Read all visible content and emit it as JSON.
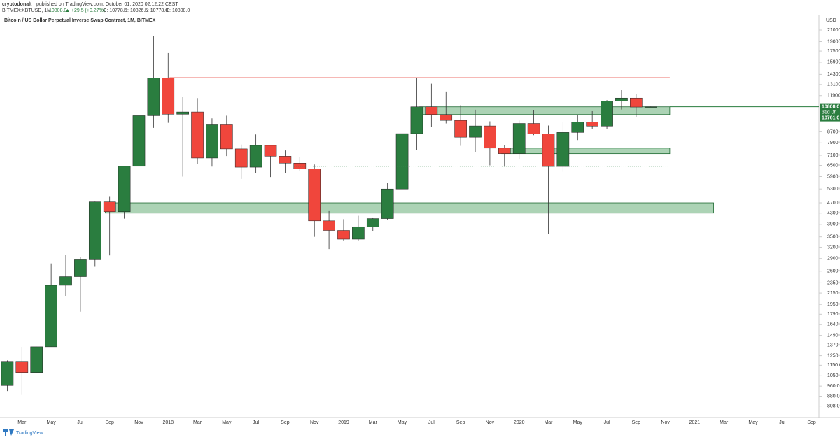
{
  "header": {
    "author": "cryptodonalt",
    "published": "published on TradingView.com, October 01, 2020 02:12:22 CEST",
    "symbol": "BITMEX:XBTUSD, 1M",
    "price": "10808.0",
    "change": "▲ +29.5 (+0.27%)",
    "ohlc": [
      "O: 10778.5",
      "H: 10826.5",
      "L: 10778.0",
      "C: 10808.0"
    ]
  },
  "footer": {
    "brand": "TradingView"
  },
  "chart_data": {
    "type": "candlestick",
    "title": "Bitcoin / US Dollar Perpetual Inverse Swap Contract, 1M, BITMEX",
    "currency": "USD",
    "categories": [
      null,
      "Mar",
      null,
      "May",
      null,
      "Jul",
      null,
      "Sep",
      null,
      "Nov",
      null,
      "2018",
      null,
      "Mar",
      null,
      "May",
      null,
      "Jul",
      null,
      "Sep",
      null,
      "Nov",
      null,
      "2019",
      null,
      "Mar",
      null,
      "May",
      null,
      "Jul",
      null,
      "Sep",
      null,
      "Nov",
      null,
      "2020",
      null,
      "Mar",
      null,
      "May",
      null,
      "Jul",
      null,
      "Sep",
      null,
      "Nov",
      null,
      "2021",
      null,
      "Mar",
      null,
      "May",
      null,
      "Jul",
      null,
      "Sep"
    ],
    "open": [
      965,
      1190,
      1080,
      1350,
      2300,
      2480,
      2870,
      4740,
      4350,
      6450,
      10000,
      13880,
      10130,
      10330,
      6930,
      9240,
      7500,
      6400,
      7730,
      7040,
      6630,
      6300,
      4020,
      3700,
      3430,
      3820,
      4100,
      5300,
      8560,
      10800,
      10100,
      9600,
      8300,
      9150,
      7550,
      7200,
      9350,
      8550,
      6440,
      8650,
      9460,
      9140,
      11350,
      11650,
      10778.5,
      null,
      null,
      null,
      null,
      null,
      null,
      null,
      null,
      null,
      null,
      null
    ],
    "high": [
      1200,
      1350,
      1350,
      2780,
      3000,
      2930,
      4750,
      4980,
      6450,
      11300,
      19900,
      17200,
      11780,
      11650,
      9770,
      10000,
      7790,
      8500,
      7760,
      7400,
      7000,
      6550,
      4400,
      4080,
      4200,
      4140,
      5600,
      9100,
      13870,
      13200,
      12330,
      10960,
      10530,
      9520,
      7750,
      9590,
      10520,
      9180,
      9480,
      10080,
      10400,
      11450,
      12470,
      12080,
      10826.5,
      null,
      null,
      null,
      null,
      null,
      null,
      null,
      null,
      null,
      null,
      null
    ],
    "low": [
      920,
      890,
      1080,
      1350,
      2100,
      1830,
      2700,
      2980,
      4100,
      5500,
      9000,
      9400,
      5900,
      6600,
      6430,
      7050,
      5780,
      6100,
      5880,
      6100,
      6200,
      3500,
      3150,
      3370,
      3380,
      3680,
      4060,
      5300,
      7450,
      9090,
      9350,
      7700,
      7300,
      6500,
      6430,
      6870,
      8450,
      3600,
      6150,
      8100,
      8900,
      8900,
      10550,
      9870,
      10778,
      null,
      null,
      null,
      null,
      null,
      null,
      null,
      null,
      null,
      null,
      null
    ],
    "close": [
      1190,
      1080,
      1350,
      2300,
      2480,
      2870,
      4740,
      4350,
      6450,
      10000,
      13880,
      10130,
      10330,
      6930,
      9240,
      7500,
      6400,
      7730,
      7040,
      6630,
      6300,
      4020,
      3700,
      3430,
      3820,
      4100,
      5300,
      8560,
      10800,
      10100,
      9600,
      8300,
      9150,
      7550,
      7200,
      9350,
      8550,
      6440,
      8650,
      9460,
      9140,
      11350,
      11650,
      10778.5,
      10808,
      null,
      null,
      null,
      null,
      null,
      null,
      null,
      null,
      null,
      null,
      null
    ],
    "up_color": "#2a7d3f",
    "down_color": "#f0463c",
    "log": true,
    "grid": false,
    "ylim": [
      736,
      22720
    ],
    "yticks": [
      {
        "value": 21000,
        "label": "21000.0"
      },
      {
        "value": 19000,
        "label": "19000.0"
      },
      {
        "value": 17500,
        "label": "17500.0"
      },
      {
        "value": 15900,
        "label": "15900.0"
      },
      {
        "value": 14300,
        "label": "14300.0"
      },
      {
        "value": 13100,
        "label": "13100.0"
      },
      {
        "value": 11900,
        "label": "11900.0"
      },
      {
        "value": 8700,
        "label": "8700.0"
      },
      {
        "value": 7900,
        "label": "7900.0"
      },
      {
        "value": 7100,
        "label": "7100.0"
      },
      {
        "value": 6500,
        "label": "6500.0"
      },
      {
        "value": 5900,
        "label": "5900.0"
      },
      {
        "value": 5300,
        "label": "5300.0"
      },
      {
        "value": 4700,
        "label": "4700.0"
      },
      {
        "value": 4300,
        "label": "4300.0"
      },
      {
        "value": 3900,
        "label": "3900.0"
      },
      {
        "value": 3500,
        "label": "3500.0"
      },
      {
        "value": 3200,
        "label": "3200.0"
      },
      {
        "value": 2900,
        "label": "2900.0"
      },
      {
        "value": 2600,
        "label": "2600.0"
      },
      {
        "value": 2350,
        "label": "2350.0"
      },
      {
        "value": 2150,
        "label": "2150.0"
      },
      {
        "value": 1950,
        "label": "1950.0"
      },
      {
        "value": 1790,
        "label": "1790.0"
      },
      {
        "value": 1640,
        "label": "1640.0"
      },
      {
        "value": 1490,
        "label": "1490.0"
      },
      {
        "value": 1370,
        "label": "1370.0"
      },
      {
        "value": 1250,
        "label": "1250.0"
      },
      {
        "value": 1150,
        "label": "1150.0"
      },
      {
        "value": 1050,
        "label": "1050.0"
      },
      {
        "value": 960,
        "label": "960.0"
      },
      {
        "value": 880,
        "label": "880.0"
      },
      {
        "value": 808,
        "label": "808.0"
      }
    ],
    "last_price": {
      "value": 10808,
      "label": "10808.0"
    },
    "countdown": "31d 0h",
    "second_price": {
      "value": 10761,
      "label": "10761.0"
    },
    "resistance": 13900,
    "resistance_color": "#e8403a",
    "dotted_level": 6450,
    "dotted_color": "#3d8a52",
    "zones": [
      {
        "low": 10100,
        "high": 10800
      },
      {
        "low": 7200,
        "high": 7550
      },
      {
        "low": 4300,
        "high": 4700
      }
    ],
    "zone_color": "#5aa86b"
  }
}
